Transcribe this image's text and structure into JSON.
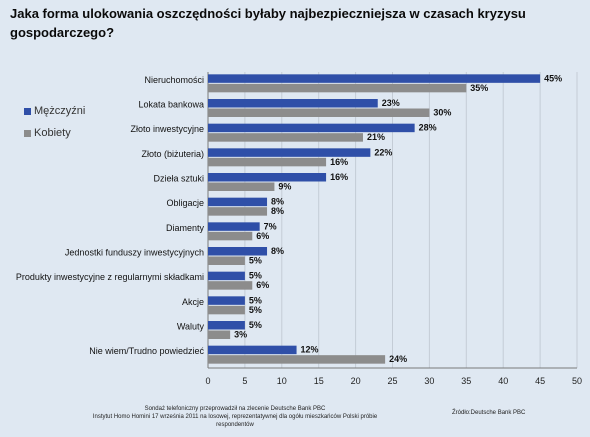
{
  "title": "Jaka forma ulokowania oszczędności byłaby najbezpieczniejsza w czasach kryzysu gospodarczego?",
  "legend": {
    "men": "Mężczyźni",
    "women": "Kobiety"
  },
  "colors": {
    "men": "#2f4fa8",
    "women": "#8c8c8c",
    "background": "#dfe8f2"
  },
  "chart_data": {
    "type": "bar",
    "orientation": "horizontal",
    "categories": [
      "Nieruchomości",
      "Lokata bankowa",
      "Złoto inwestycyjne",
      "Złoto (biżuteria)",
      "Dzieła sztuki",
      "Obligacje",
      "Diamenty",
      "Jednostki funduszy inwestycyjnych",
      "Produkty inwestycyjne z regularnymi składkami",
      "Akcje",
      "Waluty",
      "Nie wiem/Trudno powiedzieć"
    ],
    "series": [
      {
        "name": "Mężczyźni",
        "values": [
          45,
          23,
          28,
          22,
          16,
          8,
          7,
          8,
          5,
          5,
          5,
          12
        ]
      },
      {
        "name": "Kobiety",
        "values": [
          35,
          30,
          21,
          16,
          9,
          8,
          6,
          5,
          6,
          5,
          3,
          24
        ]
      }
    ],
    "value_suffix": "%",
    "xlim": [
      0,
      50
    ],
    "xticks": [
      0,
      5,
      10,
      15,
      20,
      25,
      30,
      35,
      40,
      45,
      50
    ],
    "grid": true,
    "legend_position": "left"
  },
  "footer": {
    "line1": "Sondaż telefoniczny przeprowadził na zlecenie Deutsche Bank PBC",
    "line2": "Instytut Homo Homini 17 września 2011 na losowej, reprezentatywnej dla ogółu mieszkańców Polski próbie",
    "line3": "respondentów",
    "source": "Źródło:Deutsche Bank PBC"
  }
}
